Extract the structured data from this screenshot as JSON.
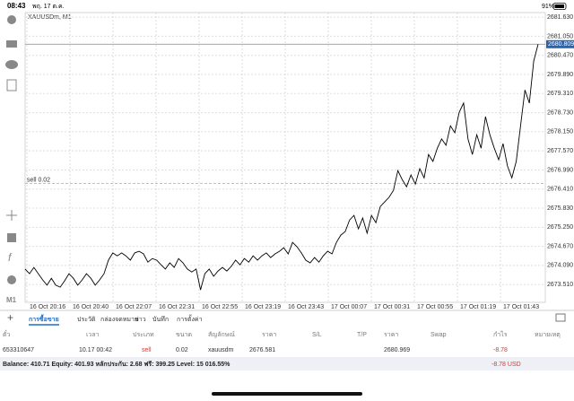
{
  "status_bar": {
    "time": "08:43",
    "date": "พฤ. 17 ต.ค.",
    "battery": "91%"
  },
  "chart_data": {
    "type": "line",
    "title": "XAUUSDm, M1",
    "color": "#000000",
    "values": [
      2673.98,
      2673.84,
      2674.03,
      2673.84,
      2673.65,
      2673.49,
      2673.7,
      2673.49,
      2673.43,
      2673.62,
      2673.84,
      2673.7,
      2673.49,
      2673.65,
      2673.84,
      2673.7,
      2673.49,
      2673.65,
      2673.84,
      2674.25,
      2674.47,
      2674.38,
      2674.47,
      2674.38,
      2674.25,
      2674.47,
      2674.52,
      2674.44,
      2674.19,
      2674.3,
      2674.25,
      2674.11,
      2673.98,
      2674.17,
      2674.03,
      2674.3,
      2674.17,
      2673.98,
      2673.89,
      2673.98,
      2673.35,
      2673.84,
      2673.98,
      2673.76,
      2673.92,
      2674.03,
      2673.92,
      2674.06,
      2674.25,
      2674.11,
      2674.3,
      2674.19,
      2674.38,
      2674.25,
      2674.38,
      2674.47,
      2674.33,
      2674.44,
      2674.52,
      2674.63,
      2674.44,
      2674.79,
      2674.66,
      2674.47,
      2674.25,
      2674.17,
      2674.33,
      2674.19,
      2674.38,
      2674.52,
      2674.44,
      2674.79,
      2675.01,
      2675.12,
      2675.47,
      2675.61,
      2675.2,
      2675.53,
      2675.07,
      2675.61,
      2675.39,
      2675.88,
      2676.02,
      2676.16,
      2676.37,
      2676.97,
      2676.7,
      2676.48,
      2676.84,
      2676.56,
      2677.03,
      2676.75,
      2677.46,
      2677.25,
      2677.65,
      2677.93,
      2677.74,
      2678.33,
      2678.12,
      2678.74,
      2679.02,
      2677.93,
      2677.46,
      2678.06,
      2677.65,
      2678.61,
      2678.06,
      2677.65,
      2677.3,
      2677.79,
      2677.11,
      2676.75,
      2677.25,
      2678.33,
      2679.42,
      2679.02,
      2680.3,
      2680.81
    ],
    "x_tick_labels": [
      "16 Oct 20:16",
      "16 Oct 20:40",
      "16 Oct 22:07",
      "16 Oct 22:31",
      "16 Oct 22:55",
      "16 Oct 23:19",
      "16 Oct 23:43",
      "17 Oct 00:07",
      "17 Oct 00:31",
      "17 Oct 00:55",
      "17 Oct 01:19",
      "17 Oct 01:43"
    ],
    "ylim": [
      2672.97,
      2681.77
    ],
    "yticks": [
      {
        "value": 2681.63,
        "label": "2681.630"
      },
      {
        "value": 2681.05,
        "label": "2681.050"
      },
      {
        "value": 2680.47,
        "label": "2680.470"
      },
      {
        "value": 2679.89,
        "label": "2679.890"
      },
      {
        "value": 2679.31,
        "label": "2679.310"
      },
      {
        "value": 2678.73,
        "label": "2678.730"
      },
      {
        "value": 2678.15,
        "label": "2678.150"
      },
      {
        "value": 2677.57,
        "label": "2677.570"
      },
      {
        "value": 2676.99,
        "label": "2676.990"
      },
      {
        "value": 2676.41,
        "label": "2676.410"
      },
      {
        "value": 2675.83,
        "label": "2675.830"
      },
      {
        "value": 2675.25,
        "label": "2675.250"
      },
      {
        "value": 2674.67,
        "label": "2674.670"
      },
      {
        "value": 2674.09,
        "label": "2674.090"
      },
      {
        "value": 2673.51,
        "label": "2673.510"
      }
    ],
    "grid": true,
    "bid_line": 2680.809,
    "order_line": {
      "label": "sell 0.02",
      "value": 2676.581
    }
  },
  "tabs": [
    "การซื้อขาย",
    "ประวัติ",
    "กล่องจดหมาย",
    "ข่าว",
    "บันทึก",
    "การตั้งค่า"
  ],
  "table": {
    "headers": [
      "ตั๋ว",
      "เวลา",
      "ประเภท",
      "ขนาด",
      "สัญลักษณ์",
      "ราคา",
      "S/L",
      "T/P",
      "ราคา",
      "Swap",
      "กำไร",
      "หมายเหตุ"
    ],
    "rows": [
      [
        "653310647",
        "10.17 00:42",
        "sell",
        "0.02",
        "xauusdm",
        "2676.581",
        "",
        "",
        "2680.969",
        "",
        "-8.78",
        ""
      ]
    ]
  },
  "balance": {
    "text": "Balance: 410.71  Equity: 401.93  หลักประกัน: 2.68  ฟรี: 399.25  Level: 15 016.55%",
    "profit": "-8.78  USD"
  }
}
